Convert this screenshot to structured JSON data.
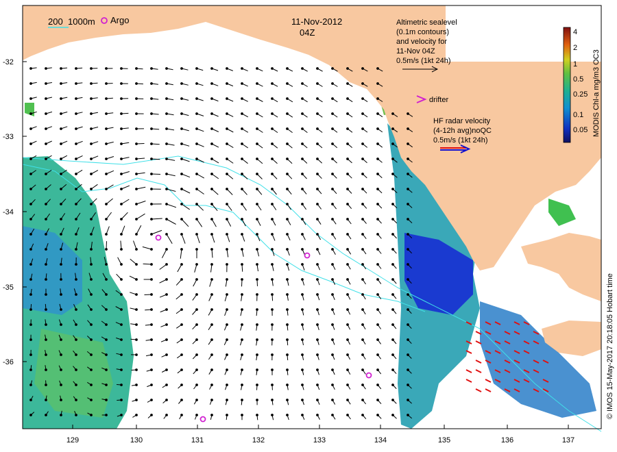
{
  "map": {
    "date": "11-Nov-2012",
    "time": "04Z",
    "isobath_legend": {
      "label_200": "200",
      "label_1000": "1000m"
    },
    "argo_label": "Argo",
    "drifter_label": "drifter",
    "altimetry_legend": [
      "Altimetric sealevel",
      "(0.1m contours)",
      "and velocity for",
      "11-Nov 04Z",
      "0.5m/s (1kt 24h)"
    ],
    "hf_radar_legend": [
      "HF radar velocity",
      "(4-12h avg)noQC",
      "0.5m/s (1kt 24h)"
    ],
    "colorbar": {
      "label": "MODIS Chl-a mg/m3 OC3",
      "ticks": [
        "4",
        "2",
        "1",
        "0.5",
        "0.25",
        "0.1",
        "0.05"
      ]
    },
    "credit": "© IMOS 15-May-2017 20:18:05 Hobart time",
    "lon_ticks": [
      "129",
      "130",
      "131",
      "132",
      "133",
      "134",
      "135",
      "136",
      "137"
    ],
    "lat_ticks": [
      "-32",
      "-33",
      "-34",
      "-35",
      "-36"
    ],
    "colors": {
      "land": "#f8c8a0",
      "isobath": "#40e0e8",
      "argo": "#d020d0",
      "hf_radar": "#e01010",
      "arrow": "#000000"
    }
  }
}
